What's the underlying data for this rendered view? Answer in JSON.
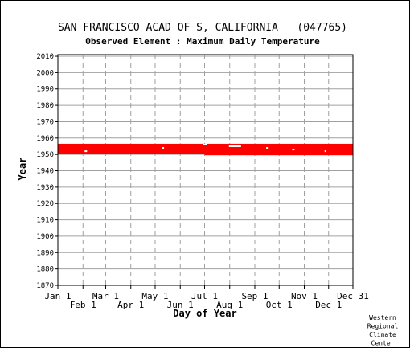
{
  "header": {
    "station_title": "SAN FRANCISCO ACAD OF S, CALIFORNIA   (047765)",
    "element_title": "Observed Element : Maximum Daily Temperature"
  },
  "footer": {
    "credit_lines": [
      "Western",
      "Regional",
      "Climate",
      "Center"
    ]
  },
  "chart_data": {
    "type": "scatter",
    "title": "SAN FRANCISCO ACAD OF S, CALIFORNIA   (047765)",
    "subtitle": "Observed Element : Maximum Daily Temperature",
    "xlabel": "Day of Year",
    "ylabel": "Year",
    "xlim": [
      1,
      365
    ],
    "ylim": [
      1870,
      2011
    ],
    "x_ticks_upper": [
      {
        "label": "Jan 1",
        "day": 1
      },
      {
        "label": "Mar 1",
        "day": 60
      },
      {
        "label": "May 1",
        "day": 121
      },
      {
        "label": "Jul 1",
        "day": 182
      },
      {
        "label": "Sep 1",
        "day": 244
      },
      {
        "label": "Nov 1",
        "day": 305
      },
      {
        "label": "Dec 31",
        "day": 365
      }
    ],
    "x_ticks_lower": [
      {
        "label": "Feb 1",
        "day": 32
      },
      {
        "label": "Apr 1",
        "day": 91
      },
      {
        "label": "Jun 1",
        "day": 152
      },
      {
        "label": "Aug 1",
        "day": 213
      },
      {
        "label": "Oct 1",
        "day": 274
      },
      {
        "label": "Dec 1",
        "day": 335
      }
    ],
    "y_ticks": [
      1870,
      1880,
      1890,
      1900,
      1910,
      1920,
      1930,
      1940,
      1950,
      1960,
      1970,
      1980,
      1990,
      2000,
      2010
    ],
    "grid": true,
    "series_color": "#ff0000",
    "data_coverage": {
      "main_band": {
        "day_start": 1,
        "day_end": 365,
        "year_start": 1951,
        "year_end": 1955
      },
      "partial_years": [
        {
          "year": 1956,
          "day_start": 1,
          "day_end": 365
        },
        {
          "year": 1950,
          "day_start": 182,
          "day_end": 365
        }
      ],
      "gaps": [
        {
          "year": 1956,
          "day_start": 180,
          "day_end": 184
        },
        {
          "year": 1955,
          "day_start": 212,
          "day_end": 226
        },
        {
          "year": 1952,
          "day_start": 34,
          "day_end": 36
        },
        {
          "year": 1954,
          "day_start": 130,
          "day_end": 131
        },
        {
          "year": 1953,
          "day_start": 290,
          "day_end": 292
        },
        {
          "year": 1952,
          "day_start": 330,
          "day_end": 331
        },
        {
          "year": 1954,
          "day_start": 258,
          "day_end": 259
        }
      ]
    }
  }
}
